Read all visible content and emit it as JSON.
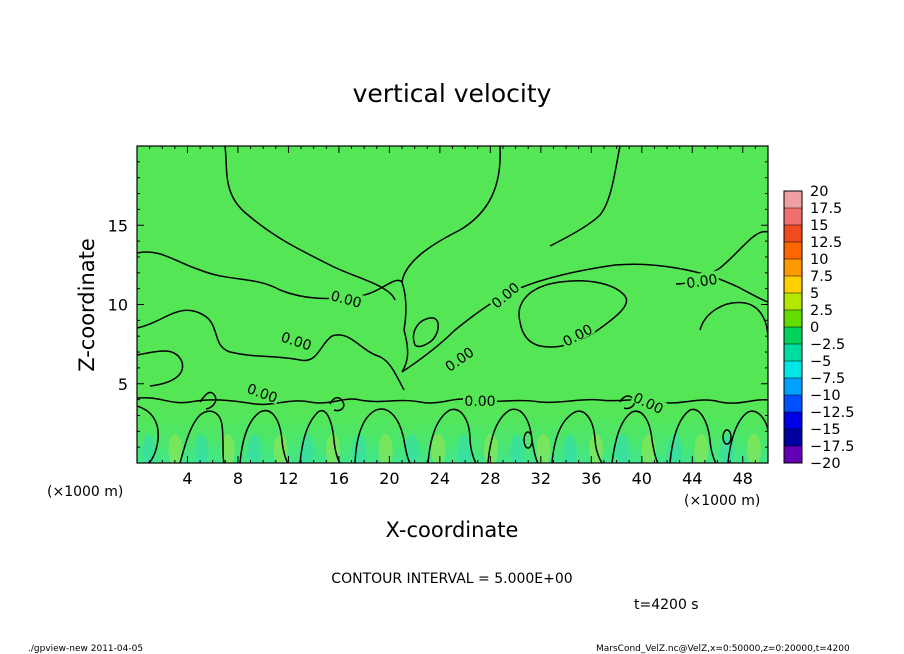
{
  "chart_data": {
    "type": "heatmap",
    "title": "vertical velocity",
    "xlabel": "X-coordinate",
    "ylabel": "Z-coordinate",
    "x_unit": "(×1000 m)",
    "y_unit": "(×1000 m)",
    "xlim": [
      0,
      50
    ],
    "ylim": [
      0,
      20
    ],
    "xticks": [
      4,
      8,
      12,
      16,
      20,
      24,
      28,
      32,
      36,
      40,
      44,
      48
    ],
    "yticks": [
      5,
      10,
      15
    ],
    "colorbar": {
      "levels": [
        "20",
        "17.5",
        "15",
        "12.5",
        "10",
        "7.5",
        "5",
        "2.5",
        "0",
        "−2.5",
        "−5",
        "−7.5",
        "−10",
        "−12.5",
        "−15",
        "−17.5",
        "−20"
      ],
      "colors": [
        "#f0a0a0",
        "#f07070",
        "#f04a1e",
        "#ff6600",
        "#ff9a00",
        "#ffd000",
        "#b4e600",
        "#64dc00",
        "#00d25a",
        "#00dca0",
        "#00e6e6",
        "#00a0ff",
        "#0050ff",
        "#0000e6",
        "#0000a0",
        "#6400b4"
      ]
    },
    "contour_interval": "CONTOUR INTERVAL = 5.000E+00",
    "contour_labels": [
      "0.00",
      "0.00",
      "0.00",
      "0.00",
      "0.00",
      "0.00",
      "0.00",
      "0.00",
      "0.00"
    ],
    "background_color": "#55e655",
    "near_surface_color": "#40e68c"
  },
  "time_label": "t=4200 s",
  "footer": {
    "left": "./gpview-new   2011-04-05",
    "right": "MarsCond_VelZ.nc@VelZ,x=0:50000,z=0:20000,t=4200"
  }
}
